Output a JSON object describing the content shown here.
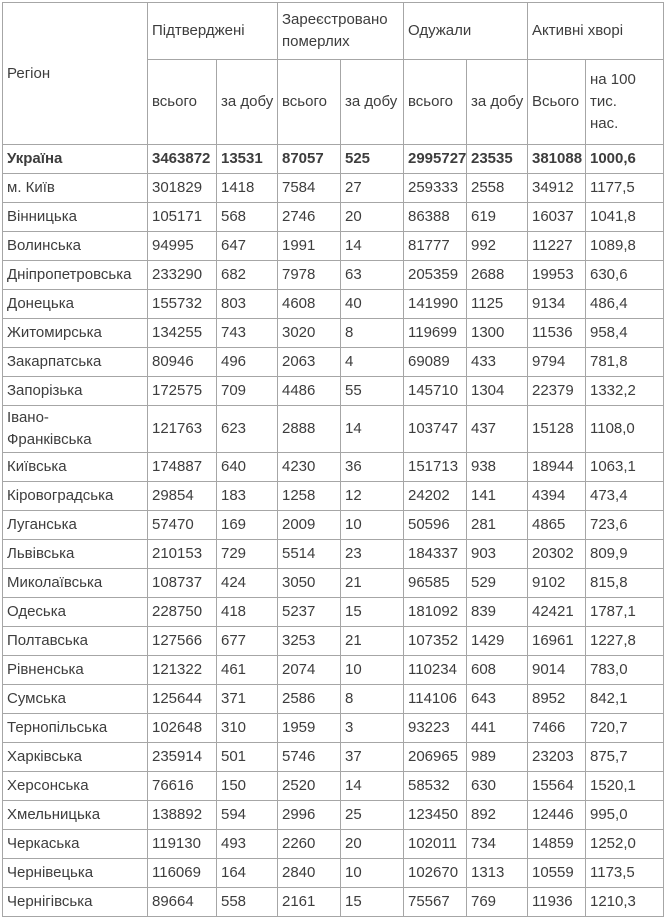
{
  "table": {
    "header": {
      "region": "Регіон",
      "groups": [
        {
          "label": "Підтверджені"
        },
        {
          "label": "Зареєстровано померлих"
        },
        {
          "label": "Одужали"
        },
        {
          "label": "Активні хворі"
        }
      ],
      "sub_columns": [
        "всього",
        "за добу",
        "всього",
        "за добу",
        "всього",
        "за добу",
        "Всього",
        "на 100\nтис.\nнас."
      ]
    },
    "rows": [
      {
        "region": "Україна",
        "bold": true,
        "values": [
          "3463872",
          "13531",
          "87057",
          "525",
          "2995727",
          "23535",
          "381088",
          "1000,6"
        ]
      },
      {
        "region": "м. Київ",
        "bold": false,
        "values": [
          "301829",
          "1418",
          "7584",
          "27",
          "259333",
          "2558",
          "34912",
          "1177,5"
        ]
      },
      {
        "region": "Вінницька",
        "bold": false,
        "values": [
          "105171",
          "568",
          "2746",
          "20",
          "86388",
          "619",
          "16037",
          "1041,8"
        ]
      },
      {
        "region": "Волинська",
        "bold": false,
        "values": [
          "94995",
          "647",
          "1991",
          "14",
          "81777",
          "992",
          "11227",
          "1089,8"
        ]
      },
      {
        "region": "Дніпропетровська",
        "bold": false,
        "values": [
          "233290",
          "682",
          "7978",
          "63",
          "205359",
          "2688",
          "19953",
          "630,6"
        ]
      },
      {
        "region": "Донецька",
        "bold": false,
        "values": [
          "155732",
          "803",
          "4608",
          "40",
          "141990",
          "1125",
          "9134",
          "486,4"
        ]
      },
      {
        "region": "Житомирська",
        "bold": false,
        "values": [
          "134255",
          "743",
          "3020",
          "8",
          "119699",
          "1300",
          "11536",
          "958,4"
        ]
      },
      {
        "region": "Закарпатська",
        "bold": false,
        "values": [
          "80946",
          "496",
          "2063",
          "4",
          "69089",
          "433",
          "9794",
          "781,8"
        ]
      },
      {
        "region": "Запорізька",
        "bold": false,
        "values": [
          "172575",
          "709",
          "4486",
          "55",
          "145710",
          "1304",
          "22379",
          "1332,2"
        ]
      },
      {
        "region": "Івано-\nФранківська",
        "bold": false,
        "values": [
          "121763",
          "623",
          "2888",
          "14",
          "103747",
          "437",
          "15128",
          "1108,0"
        ]
      },
      {
        "region": "Київська",
        "bold": false,
        "values": [
          "174887",
          "640",
          "4230",
          "36",
          "151713",
          "938",
          "18944",
          "1063,1"
        ]
      },
      {
        "region": "Кіровоградська",
        "bold": false,
        "values": [
          "29854",
          "183",
          "1258",
          "12",
          "24202",
          "141",
          "4394",
          "473,4"
        ]
      },
      {
        "region": "Луганська",
        "bold": false,
        "values": [
          "57470",
          "169",
          "2009",
          "10",
          "50596",
          "281",
          "4865",
          "723,6"
        ]
      },
      {
        "region": "Львівська",
        "bold": false,
        "values": [
          "210153",
          "729",
          "5514",
          "23",
          "184337",
          "903",
          "20302",
          "809,9"
        ]
      },
      {
        "region": "Миколаївська",
        "bold": false,
        "values": [
          "108737",
          "424",
          "3050",
          "21",
          "96585",
          "529",
          "9102",
          "815,8"
        ]
      },
      {
        "region": "Одеська",
        "bold": false,
        "values": [
          "228750",
          "418",
          "5237",
          "15",
          "181092",
          "839",
          "42421",
          "1787,1"
        ]
      },
      {
        "region": "Полтавська",
        "bold": false,
        "values": [
          "127566",
          "677",
          "3253",
          "21",
          "107352",
          "1429",
          "16961",
          "1227,8"
        ]
      },
      {
        "region": "Рівненська",
        "bold": false,
        "values": [
          "121322",
          "461",
          "2074",
          "10",
          "110234",
          "608",
          "9014",
          "783,0"
        ]
      },
      {
        "region": "Сумська",
        "bold": false,
        "values": [
          "125644",
          "371",
          "2586",
          "8",
          "114106",
          "643",
          "8952",
          "842,1"
        ]
      },
      {
        "region": "Тернопільська",
        "bold": false,
        "values": [
          "102648",
          "310",
          "1959",
          "3",
          "93223",
          "441",
          "7466",
          "720,7"
        ]
      },
      {
        "region": "Харківська",
        "bold": false,
        "values": [
          "235914",
          "501",
          "5746",
          "37",
          "206965",
          "989",
          "23203",
          "875,7"
        ]
      },
      {
        "region": "Херсонська",
        "bold": false,
        "values": [
          "76616",
          "150",
          "2520",
          "14",
          "58532",
          "630",
          "15564",
          "1520,1"
        ]
      },
      {
        "region": "Хмельницька",
        "bold": false,
        "values": [
          "138892",
          "594",
          "2996",
          "25",
          "123450",
          "892",
          "12446",
          "995,0"
        ]
      },
      {
        "region": "Черкаська",
        "bold": false,
        "values": [
          "119130",
          "493",
          "2260",
          "20",
          "102011",
          "734",
          "14859",
          "1252,0"
        ]
      },
      {
        "region": "Чернівецька",
        "bold": false,
        "values": [
          "116069",
          "164",
          "2840",
          "10",
          "102670",
          "1313",
          "10559",
          "1173,5"
        ]
      },
      {
        "region": "Чернігівська",
        "bold": false,
        "values": [
          "89664",
          "558",
          "2161",
          "15",
          "75567",
          "769",
          "11936",
          "1210,3"
        ]
      }
    ]
  }
}
